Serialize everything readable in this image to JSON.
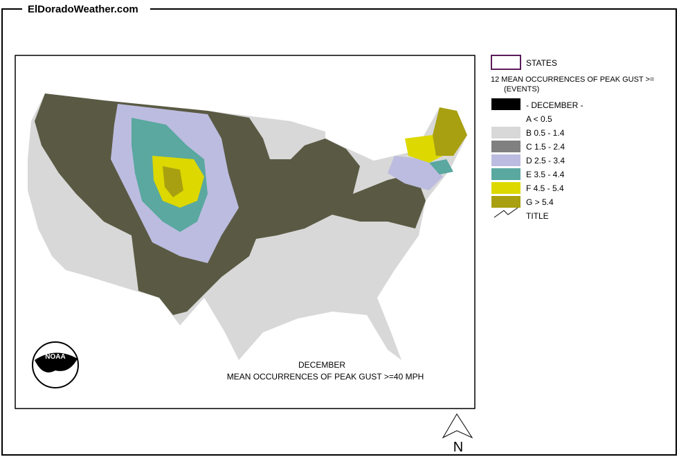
{
  "header": {
    "title": "ElDoradoWeather.com"
  },
  "legend": {
    "states": "STATES",
    "heading": "12 MEAN OCCURRENCES OF PEAK GUST >=",
    "units": "(EVENTS)",
    "month": "- DECEMBER -",
    "items": [
      {
        "label": "A < 0.5",
        "color": "#ffffff"
      },
      {
        "label": "B 0.5 - 1.4",
        "color": "#d8d8d8"
      },
      {
        "label": "C 1.5 - 2.4",
        "color": "#808080"
      },
      {
        "label": "D 2.5 - 3.4",
        "color": "#bcbce0"
      },
      {
        "label": "E 3.5 - 4.4",
        "color": "#5aa8a0"
      },
      {
        "label": "F 4.5 - 5.4",
        "color": "#dcd800"
      },
      {
        "label": "G > 5.4",
        "color": "#a8a010"
      }
    ],
    "title_item": "TITLE"
  },
  "map": {
    "caption_month": "DECEMBER",
    "caption": "MEAN OCCURRENCES OF PEAK GUST >=40 MPH",
    "logo": "NOAA",
    "north": "N"
  }
}
